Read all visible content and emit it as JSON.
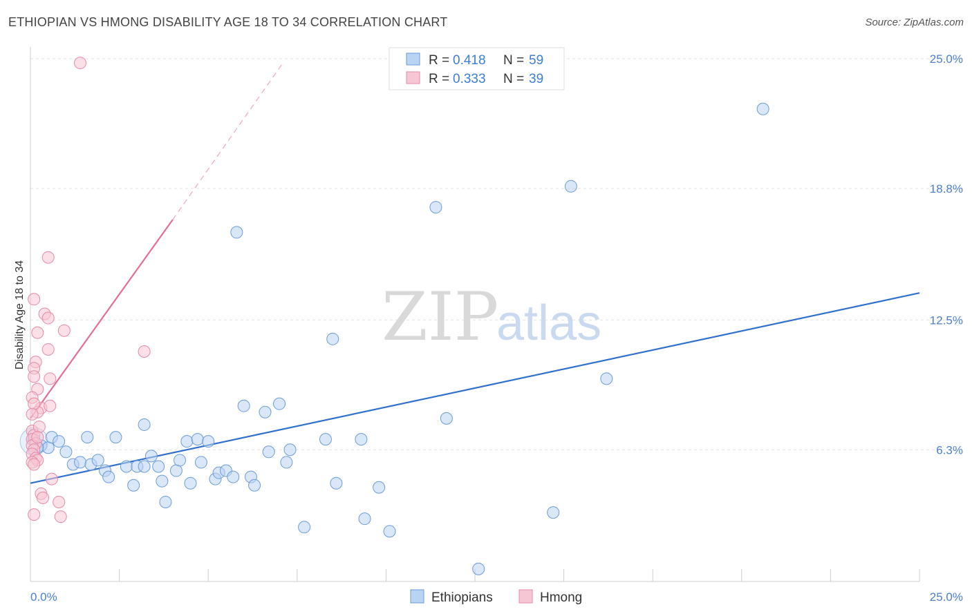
{
  "header": {
    "title": "ETHIOPIAN VS HMONG DISABILITY AGE 18 TO 34 CORRELATION CHART",
    "source": "Source: ZipAtlas.com"
  },
  "legend": {
    "rows": [
      {
        "r_label": "R =",
        "r_value": "0.418",
        "n_label": "N =",
        "n_value": "59"
      },
      {
        "r_label": "R =",
        "r_value": "0.333",
        "n_label": "N =",
        "n_value": "39"
      }
    ]
  },
  "watermark": {
    "zip": "ZIP",
    "atlas": "atlas"
  },
  "colors": {
    "ethiopians_fill": "#b9d3f3",
    "ethiopians_stroke": "#6b9bd8",
    "ethiopians_line": "#2f6fcf",
    "hmong_fill": "#f7c6d4",
    "hmong_stroke": "#e58aa8",
    "hmong_line": "#e36d96",
    "axis_text": "#4a7fd0"
  },
  "chart_data": {
    "type": "scatter",
    "title": "ETHIOPIAN VS HMONG DISABILITY AGE 18 TO 34 CORRELATION CHART",
    "xlabel": "",
    "ylabel": "Disability Age 18 to 34",
    "xlim": [
      0,
      25
    ],
    "ylim": [
      0,
      25.5
    ],
    "x_tick_labels": [
      "0.0%",
      "25.0%"
    ],
    "y_ticks": [
      6.3,
      12.5,
      18.8,
      25.0
    ],
    "y_tick_labels": [
      "6.3%",
      "12.5%",
      "18.8%",
      "25.0%"
    ],
    "grid": true,
    "legend_position": "top-center",
    "series": [
      {
        "name": "Ethiopians",
        "r": 0.418,
        "n": 59,
        "trend": {
          "x0": 0,
          "y0": 4.7,
          "x1": 25,
          "y1": 13.8
        },
        "points": [
          [
            0.1,
            6.8
          ],
          [
            0.3,
            6.5
          ],
          [
            0.5,
            6.4
          ],
          [
            0.6,
            6.9
          ],
          [
            0.8,
            6.7
          ],
          [
            1.0,
            6.2
          ],
          [
            1.2,
            5.6
          ],
          [
            1.4,
            5.7
          ],
          [
            1.6,
            6.9
          ],
          [
            1.7,
            5.6
          ],
          [
            1.9,
            5.8
          ],
          [
            2.1,
            5.3
          ],
          [
            2.2,
            5.0
          ],
          [
            2.4,
            6.9
          ],
          [
            2.7,
            5.5
          ],
          [
            2.9,
            4.6
          ],
          [
            3.0,
            5.5
          ],
          [
            3.2,
            7.5
          ],
          [
            3.2,
            5.5
          ],
          [
            3.4,
            6.0
          ],
          [
            3.6,
            5.5
          ],
          [
            3.7,
            4.8
          ],
          [
            3.8,
            3.8
          ],
          [
            4.1,
            5.3
          ],
          [
            4.2,
            5.8
          ],
          [
            4.4,
            6.7
          ],
          [
            4.5,
            4.7
          ],
          [
            4.7,
            6.8
          ],
          [
            4.8,
            5.7
          ],
          [
            5.0,
            6.7
          ],
          [
            5.2,
            4.9
          ],
          [
            5.3,
            5.2
          ],
          [
            5.5,
            5.3
          ],
          [
            5.7,
            5.0
          ],
          [
            5.8,
            16.7
          ],
          [
            6.0,
            8.4
          ],
          [
            6.2,
            5.0
          ],
          [
            6.3,
            4.6
          ],
          [
            6.6,
            8.1
          ],
          [
            6.7,
            6.2
          ],
          [
            7.0,
            8.5
          ],
          [
            7.2,
            5.7
          ],
          [
            7.3,
            6.3
          ],
          [
            7.7,
            2.6
          ],
          [
            8.3,
            6.8
          ],
          [
            8.5,
            11.6
          ],
          [
            8.6,
            4.7
          ],
          [
            9.3,
            6.8
          ],
          [
            9.4,
            3.0
          ],
          [
            9.8,
            4.5
          ],
          [
            10.1,
            2.4
          ],
          [
            11.4,
            17.9
          ],
          [
            11.7,
            7.8
          ],
          [
            12.6,
            0.6
          ],
          [
            14.7,
            3.3
          ],
          [
            15.2,
            18.9
          ],
          [
            16.2,
            9.7
          ],
          [
            20.6,
            22.6
          ],
          [
            0.2,
            6.4
          ]
        ]
      },
      {
        "name": "Hmong",
        "r": 0.333,
        "n": 39,
        "trend": {
          "x0": 0,
          "y0": 7.8,
          "x1": 4.0,
          "y1": 17.3
        },
        "trend_dashed": {
          "x0": 4.0,
          "y0": 17.3,
          "x1": 7.1,
          "y1": 24.8
        },
        "points": [
          [
            1.4,
            24.8
          ],
          [
            0.5,
            15.5
          ],
          [
            0.1,
            13.5
          ],
          [
            0.4,
            12.8
          ],
          [
            0.5,
            12.6
          ],
          [
            0.2,
            11.9
          ],
          [
            0.95,
            12.0
          ],
          [
            0.5,
            11.1
          ],
          [
            3.2,
            11.0
          ],
          [
            0.15,
            10.5
          ],
          [
            0.1,
            10.2
          ],
          [
            0.55,
            9.7
          ],
          [
            0.2,
            9.2
          ],
          [
            0.05,
            8.8
          ],
          [
            0.3,
            8.3
          ],
          [
            0.55,
            8.4
          ],
          [
            0.2,
            8.1
          ],
          [
            0.1,
            8.5
          ],
          [
            0.05,
            7.2
          ],
          [
            0.1,
            7.0
          ],
          [
            0.05,
            6.8
          ],
          [
            0.15,
            6.6
          ],
          [
            0.05,
            6.5
          ],
          [
            0.1,
            6.3
          ],
          [
            0.05,
            6.1
          ],
          [
            0.15,
            5.9
          ],
          [
            0.2,
            5.8
          ],
          [
            0.05,
            5.7
          ],
          [
            0.1,
            5.6
          ],
          [
            0.6,
            4.9
          ],
          [
            0.3,
            4.2
          ],
          [
            0.35,
            4.0
          ],
          [
            0.8,
            3.8
          ],
          [
            0.1,
            3.2
          ],
          [
            0.85,
            3.1
          ],
          [
            0.1,
            9.8
          ],
          [
            0.25,
            7.4
          ],
          [
            0.05,
            8.0
          ],
          [
            0.2,
            6.9
          ]
        ]
      }
    ]
  },
  "bottom_legend": {
    "items": [
      {
        "label": "Ethiopians"
      },
      {
        "label": "Hmong"
      }
    ]
  }
}
